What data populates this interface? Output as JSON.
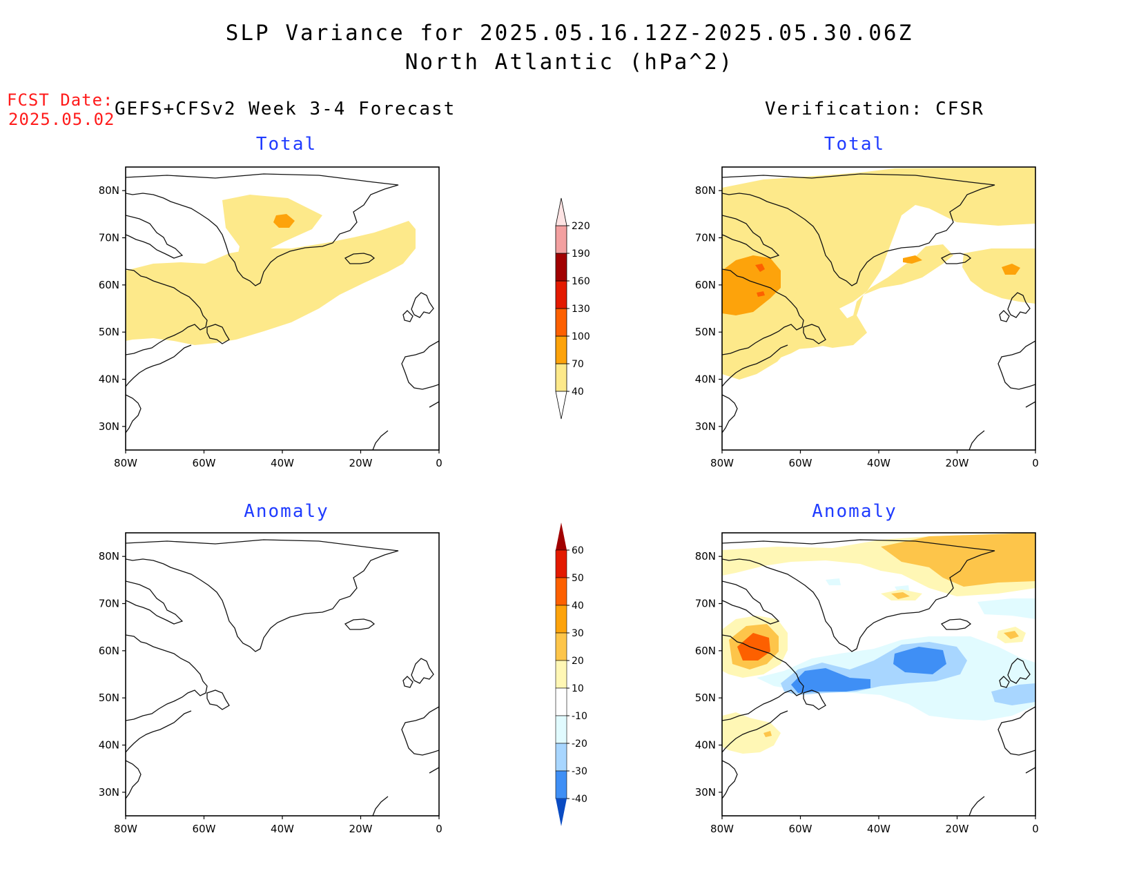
{
  "title": {
    "line1": "SLP Variance for 2025.05.16.12Z-2025.05.30.06Z",
    "line2": "North Atlantic (hPa^2)"
  },
  "fcst": {
    "label": "FCST Date:",
    "date": "2025.05.02"
  },
  "left_header": "GEFS+CFSv2 Week 3-4 Forecast",
  "right_header": "Verification: CFSR",
  "panels": {
    "forecast_total": {
      "title": "Total"
    },
    "verif_total": {
      "title": "Total"
    },
    "forecast_anomaly": {
      "title": "Anomaly"
    },
    "verif_anomaly": {
      "title": "Anomaly"
    }
  },
  "axes": {
    "lon_ticks": [
      "80W",
      "60W",
      "40W",
      "20W",
      "0"
    ],
    "lat_ticks": [
      "80N",
      "70N",
      "60N",
      "50N",
      "40N",
      "30N"
    ]
  },
  "total_colorbar": {
    "levels": [
      "40",
      "70",
      "100",
      "130",
      "160",
      "190",
      "220"
    ],
    "colors": [
      "#fde98a",
      "#fda30b",
      "#fd6000",
      "#e31a00",
      "#a10000",
      "#f3a0a0",
      "#fde3e3"
    ]
  },
  "anomaly_colorbar": {
    "levels": [
      "60",
      "50",
      "40",
      "30",
      "20",
      "10",
      "-10",
      "-20",
      "-30",
      "-40"
    ],
    "colors": [
      "#a10000",
      "#e31a00",
      "#fd6000",
      "#fda30b",
      "#fdc54a",
      "#fff7b5",
      "#ffffff",
      "#e1fbff",
      "#a8d6ff",
      "#3f8ff5",
      "#1460d8",
      "#0a4bc2"
    ]
  },
  "chart_data": {
    "type": "heatmap",
    "region": {
      "lon": [
        -80,
        0
      ],
      "lat": [
        25,
        85
      ]
    },
    "panels": [
      {
        "name": "forecast_total",
        "regions": [
          {
            "level": "40-70",
            "where": "Labrador Sea, Newfoundland, central North Atlantic to Iceland"
          },
          {
            "level": "70-100",
            "where": "central Greenland"
          }
        ]
      },
      {
        "name": "verif_total",
        "regions": [
          {
            "level": "40-70",
            "where": "Arctic, Greenland east coast, Labrador, Atlantic 45-55N, Norwegian Sea"
          },
          {
            "level": "70-100",
            "where": "Hudson Bay / Labrador, south of Iceland, Norwegian Sea"
          }
        ]
      },
      {
        "name": "forecast_anomaly",
        "regions": []
      },
      {
        "name": "verif_anomaly",
        "regions": [
          {
            "level": "20-40",
            "where": "northeast Greenland, Hudson Bay"
          },
          {
            "level": "-20 to -40",
            "where": "Newfoundland east to 25W, 50-58N"
          }
        ]
      }
    ]
  }
}
